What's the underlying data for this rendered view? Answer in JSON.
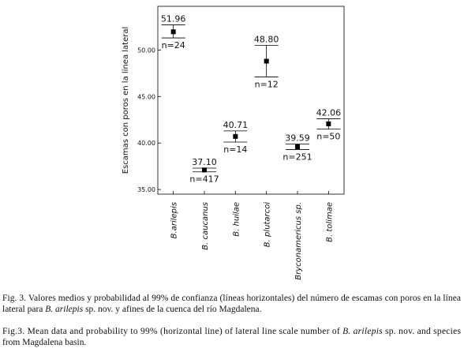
{
  "chart_data": {
    "type": "errorbar",
    "ylabel": "Escamas con poros en la línea lateral",
    "categories": [
      "B.arilepis",
      "B. caucanus",
      "B. huilae",
      "B. plutarcoi",
      "Bryconamericus sp.",
      "B. tolimae"
    ],
    "values": [
      51.96,
      37.1,
      40.71,
      48.8,
      39.59,
      42.06
    ],
    "value_labels": [
      "51.96",
      "37.10",
      "40.71",
      "48.80",
      "39.59",
      "42.06"
    ],
    "lower": [
      51.3,
      36.9,
      40.1,
      47.1,
      39.3,
      41.5
    ],
    "upper": [
      52.7,
      37.3,
      41.3,
      50.5,
      39.9,
      42.6
    ],
    "n_labels": [
      "n=24",
      "n=417",
      "n=14",
      "n=12",
      "n=251",
      "n=50"
    ],
    "ylim": [
      34.5,
      54.7
    ],
    "yticks": [
      {
        "value": 35,
        "label": "35.00"
      },
      {
        "value": 40,
        "label": "40.00"
      },
      {
        "value": 45,
        "label": "45.00"
      },
      {
        "value": 50,
        "label": "50.00"
      }
    ],
    "color": "#000000"
  },
  "caption_es": [
    "Fig. 3. Valores medios y probabilidad al 99% de confianza (líneas horizontales) del número de escamas con poros en la línea",
    "lateral para ",
    "B. arilepis",
    " sp. nov. y afines de la cuenca del río Magdalena."
  ],
  "caption_en": [
    "Fig.3. Mean data and probability to 99% (horizontal line) of lateral line scale number of ",
    "B. arilepis",
    " sp. nov. and species",
    "from Magdalena basin."
  ]
}
